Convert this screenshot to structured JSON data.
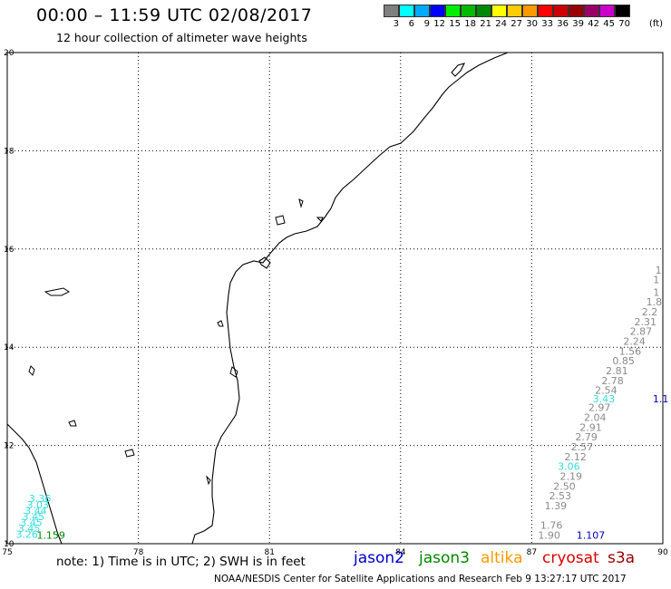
{
  "header": {
    "title": "00:00 – 11:59 UTC 02/08/2017",
    "subtitle": "12 hour collection of altimeter wave heights"
  },
  "colorbar": {
    "colors": [
      "#7f7f7f",
      "#00ffff",
      "#00aaff",
      "#0000ff",
      "#00ee00",
      "#00bb00",
      "#008800",
      "#ffff00",
      "#ffcc00",
      "#ff9900",
      "#ff0000",
      "#cc0000",
      "#990000",
      "#990066",
      "#cc00cc",
      "#000000"
    ],
    "labels": [
      "3",
      "6",
      "9",
      "12",
      "15",
      "18",
      "21",
      "24",
      "27",
      "30",
      "33",
      "36",
      "39",
      "42",
      "45",
      "70"
    ],
    "unit": "(ft)"
  },
  "chart_data": {
    "type": "scatter",
    "title": "00:00 – 11:59 UTC 02/08/2017",
    "subtitle": "12 hour collection of altimeter wave heights",
    "xlim": [
      75,
      90
    ],
    "ylim": [
      10,
      20
    ],
    "x_ticks": [
      "75",
      "78",
      "81",
      "84",
      "87",
      "90"
    ],
    "y_ticks": [
      "10",
      "12",
      "14",
      "16",
      "18",
      "20"
    ],
    "grid": true,
    "series": [
      {
        "name": "jason3",
        "color": "#8a8a8a",
        "points": [
          {
            "lon": 89.9,
            "lat": 15.5,
            "label": "1"
          },
          {
            "lon": 89.85,
            "lat": 15.3,
            "label": "1"
          },
          {
            "lon": 89.85,
            "lat": 15.05,
            "label": "1"
          },
          {
            "lon": 89.8,
            "lat": 14.85,
            "label": "1.8"
          },
          {
            "lon": 89.7,
            "lat": 14.65,
            "label": "2.2"
          },
          {
            "lon": 89.6,
            "lat": 14.45,
            "label": "2.31"
          },
          {
            "lon": 89.5,
            "lat": 14.25,
            "label": "2.87"
          },
          {
            "lon": 89.35,
            "lat": 14.05,
            "label": "2.24"
          },
          {
            "lon": 89.25,
            "lat": 13.85,
            "label": "1.56"
          },
          {
            "lon": 89.1,
            "lat": 13.65,
            "label": "0.85"
          },
          {
            "lon": 88.95,
            "lat": 13.45,
            "label": "2.81"
          },
          {
            "lon": 88.85,
            "lat": 13.25,
            "label": "2.78"
          },
          {
            "lon": 88.7,
            "lat": 13.05,
            "label": "2.54"
          },
          {
            "lon": 88.55,
            "lat": 12.7,
            "label": "2.97"
          },
          {
            "lon": 88.45,
            "lat": 12.5,
            "label": "2.04"
          },
          {
            "lon": 88.35,
            "lat": 12.3,
            "label": "2.91"
          },
          {
            "lon": 88.25,
            "lat": 12.1,
            "label": "2.79"
          },
          {
            "lon": 88.15,
            "lat": 11.9,
            "label": "2.57"
          },
          {
            "lon": 88.0,
            "lat": 11.7,
            "label": "2.12"
          },
          {
            "lon": 87.9,
            "lat": 11.3,
            "label": "2.19"
          },
          {
            "lon": 87.75,
            "lat": 11.1,
            "label": "2.50"
          },
          {
            "lon": 87.65,
            "lat": 10.9,
            "label": "2.53"
          },
          {
            "lon": 87.55,
            "lat": 10.7,
            "label": "1.39"
          },
          {
            "lon": 87.45,
            "lat": 10.3,
            "label": "1.76"
          },
          {
            "lon": 87.4,
            "lat": 10.1,
            "label": "1.90"
          }
        ]
      },
      {
        "name": "jason3-cyan",
        "color": "#33dddd",
        "points": [
          {
            "lon": 88.65,
            "lat": 12.88,
            "label": "3.43"
          },
          {
            "lon": 87.85,
            "lat": 11.5,
            "label": "3.06"
          },
          {
            "lon": 75.75,
            "lat": 10.85,
            "label": "3.36"
          },
          {
            "lon": 75.7,
            "lat": 10.72,
            "label": "3.03"
          },
          {
            "lon": 75.65,
            "lat": 10.6,
            "label": "3.44"
          },
          {
            "lon": 75.6,
            "lat": 10.48,
            "label": "3.45"
          },
          {
            "lon": 75.55,
            "lat": 10.36,
            "label": "3.45"
          },
          {
            "lon": 75.5,
            "lat": 10.24,
            "label": "3.45"
          },
          {
            "lon": 75.45,
            "lat": 10.12,
            "label": "3.26"
          }
        ]
      },
      {
        "name": "jason2",
        "color": "#0000bb",
        "points": [
          {
            "lon": 89.95,
            "lat": 12.88,
            "label": "1.1"
          },
          {
            "lon": 88.35,
            "lat": 10.1,
            "label": "1.107"
          }
        ]
      },
      {
        "name": "jason3-green",
        "color": "#008800",
        "points": [
          {
            "lon": 76.0,
            "lat": 10.1,
            "label": "1.159"
          }
        ]
      }
    ]
  },
  "map": {
    "coastline_color": "#000000"
  },
  "footer": {
    "note": "note: 1) Time is in UTC; 2) SWH is in feet",
    "satellites": [
      {
        "label": "jason2",
        "color": "#0000cc"
      },
      {
        "label": "jason3",
        "color": "#008800"
      },
      {
        "label": "altika",
        "color": "#ff9900"
      },
      {
        "label": "cryosat",
        "color": "#dd0000"
      },
      {
        "label": "s3a",
        "color": "#990000"
      }
    ],
    "credit": "NOAA/NESDIS Center for Satellite Applications and Research    Feb  9 13:27:17 UTC 2017"
  }
}
